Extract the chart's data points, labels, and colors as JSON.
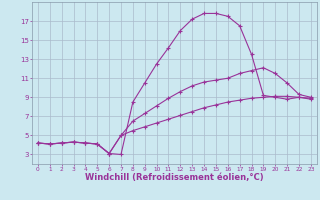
{
  "background_color": "#cce8f0",
  "grid_color": "#aabbcc",
  "line_color": "#993399",
  "xlim": [
    -0.5,
    23.5
  ],
  "ylim": [
    2,
    19
  ],
  "xlabel": "Windchill (Refroidissement éolien,°C)",
  "xlabel_fontsize": 6,
  "xticks": [
    0,
    1,
    2,
    3,
    4,
    5,
    6,
    7,
    8,
    9,
    10,
    11,
    12,
    13,
    14,
    15,
    16,
    17,
    18,
    19,
    20,
    21,
    22,
    23
  ],
  "yticks": [
    3,
    5,
    7,
    9,
    11,
    13,
    15,
    17
  ],
  "curve1_x": [
    0,
    1,
    2,
    3,
    4,
    5,
    6,
    7,
    8,
    9,
    10,
    11,
    12,
    13,
    14,
    15,
    16,
    17,
    18,
    19,
    20,
    21,
    22,
    23
  ],
  "curve1_y": [
    4.2,
    4.1,
    4.2,
    4.3,
    4.2,
    4.1,
    3.1,
    3.0,
    8.5,
    10.5,
    12.5,
    14.2,
    16.0,
    17.2,
    17.8,
    17.8,
    17.5,
    16.5,
    13.5,
    9.2,
    9.0,
    8.8,
    9.0,
    8.8
  ],
  "curve2_x": [
    0,
    1,
    2,
    3,
    4,
    5,
    6,
    7,
    8,
    9,
    10,
    11,
    12,
    13,
    14,
    15,
    16,
    17,
    18,
    19,
    20,
    21,
    22,
    23
  ],
  "curve2_y": [
    4.2,
    4.1,
    4.2,
    4.3,
    4.2,
    4.1,
    3.1,
    5.0,
    6.5,
    7.3,
    8.1,
    8.9,
    9.6,
    10.2,
    10.6,
    10.8,
    11.0,
    11.5,
    11.8,
    12.1,
    11.5,
    10.5,
    9.3,
    9.0
  ],
  "curve3_x": [
    0,
    1,
    2,
    3,
    4,
    5,
    6,
    7,
    8,
    9,
    10,
    11,
    12,
    13,
    14,
    15,
    16,
    17,
    18,
    19,
    20,
    21,
    22,
    23
  ],
  "curve3_y": [
    4.2,
    4.1,
    4.2,
    4.3,
    4.2,
    4.1,
    3.1,
    5.0,
    5.5,
    5.9,
    6.3,
    6.7,
    7.1,
    7.5,
    7.9,
    8.2,
    8.5,
    8.7,
    8.9,
    9.0,
    9.1,
    9.1,
    9.0,
    8.9
  ]
}
